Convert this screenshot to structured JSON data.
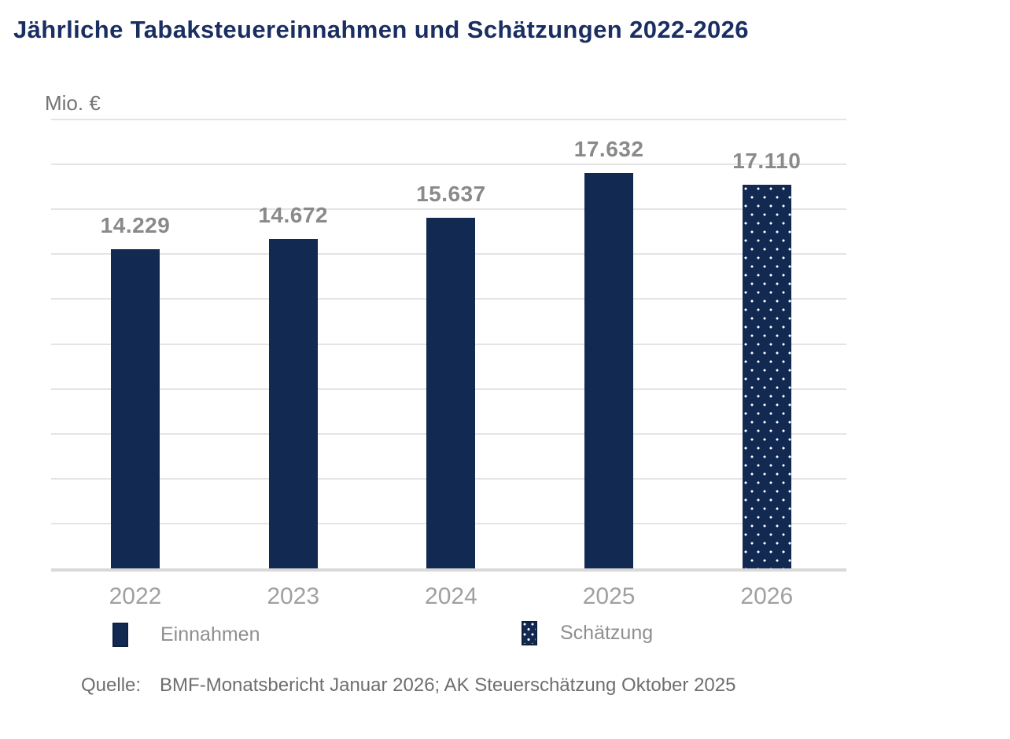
{
  "title": "Jährliche Tabaksteuereinnahmen und Schätzungen 2022-2026",
  "unit_label": "Mio. €",
  "legend": [
    {
      "label": "Einnahmen",
      "style": "solid"
    },
    {
      "label": "Schätzung",
      "style": "dotted"
    }
  ],
  "source": {
    "label": "Quelle:",
    "text": "BMF-Monatsbericht Januar 2026; AK Steuerschätzung Oktober 2025"
  },
  "colors": {
    "title_navy": "#1A2E62",
    "bar_navy": "#122A52",
    "swatch_border": "#0E1F40",
    "dot_white": "#FFFFFF",
    "grid_gray": "#E4E4E4",
    "axis_gray": "#D9D9D9",
    "value_label_gray": "#8A8A8A",
    "year_label_gray": "#9FA0A2",
    "legend_label_gray": "#8F8F8F",
    "unit_label_gray": "#737373",
    "source_gray": "#6E6E6E"
  },
  "chart_data": {
    "type": "bar",
    "title": "Jährliche Tabaksteuereinnahmen und Schätzungen 2022-2026",
    "categories": [
      "2022",
      "2023",
      "2024",
      "2025",
      "2026"
    ],
    "values": [
      14229,
      14672,
      15637,
      17632,
      17110
    ],
    "value_labels": [
      "14.229",
      "14.672",
      "15.637",
      "17.632",
      "17.110"
    ],
    "bar_styles": [
      "solid",
      "solid",
      "solid",
      "solid",
      "dotted"
    ],
    "series": [
      {
        "name": "Einnahmen",
        "values": [
          14229,
          14672,
          15637,
          17632,
          null
        ]
      },
      {
        "name": "Schätzung",
        "values": [
          null,
          null,
          null,
          null,
          17110
        ]
      }
    ],
    "xlabel": "",
    "ylabel": "Mio. €",
    "ylim": [
      0,
      20000
    ],
    "gridline_step": 2000,
    "grid": true,
    "y_tick_labels_shown": false,
    "legend_position": "bottom",
    "data_labels_shown": true
  }
}
